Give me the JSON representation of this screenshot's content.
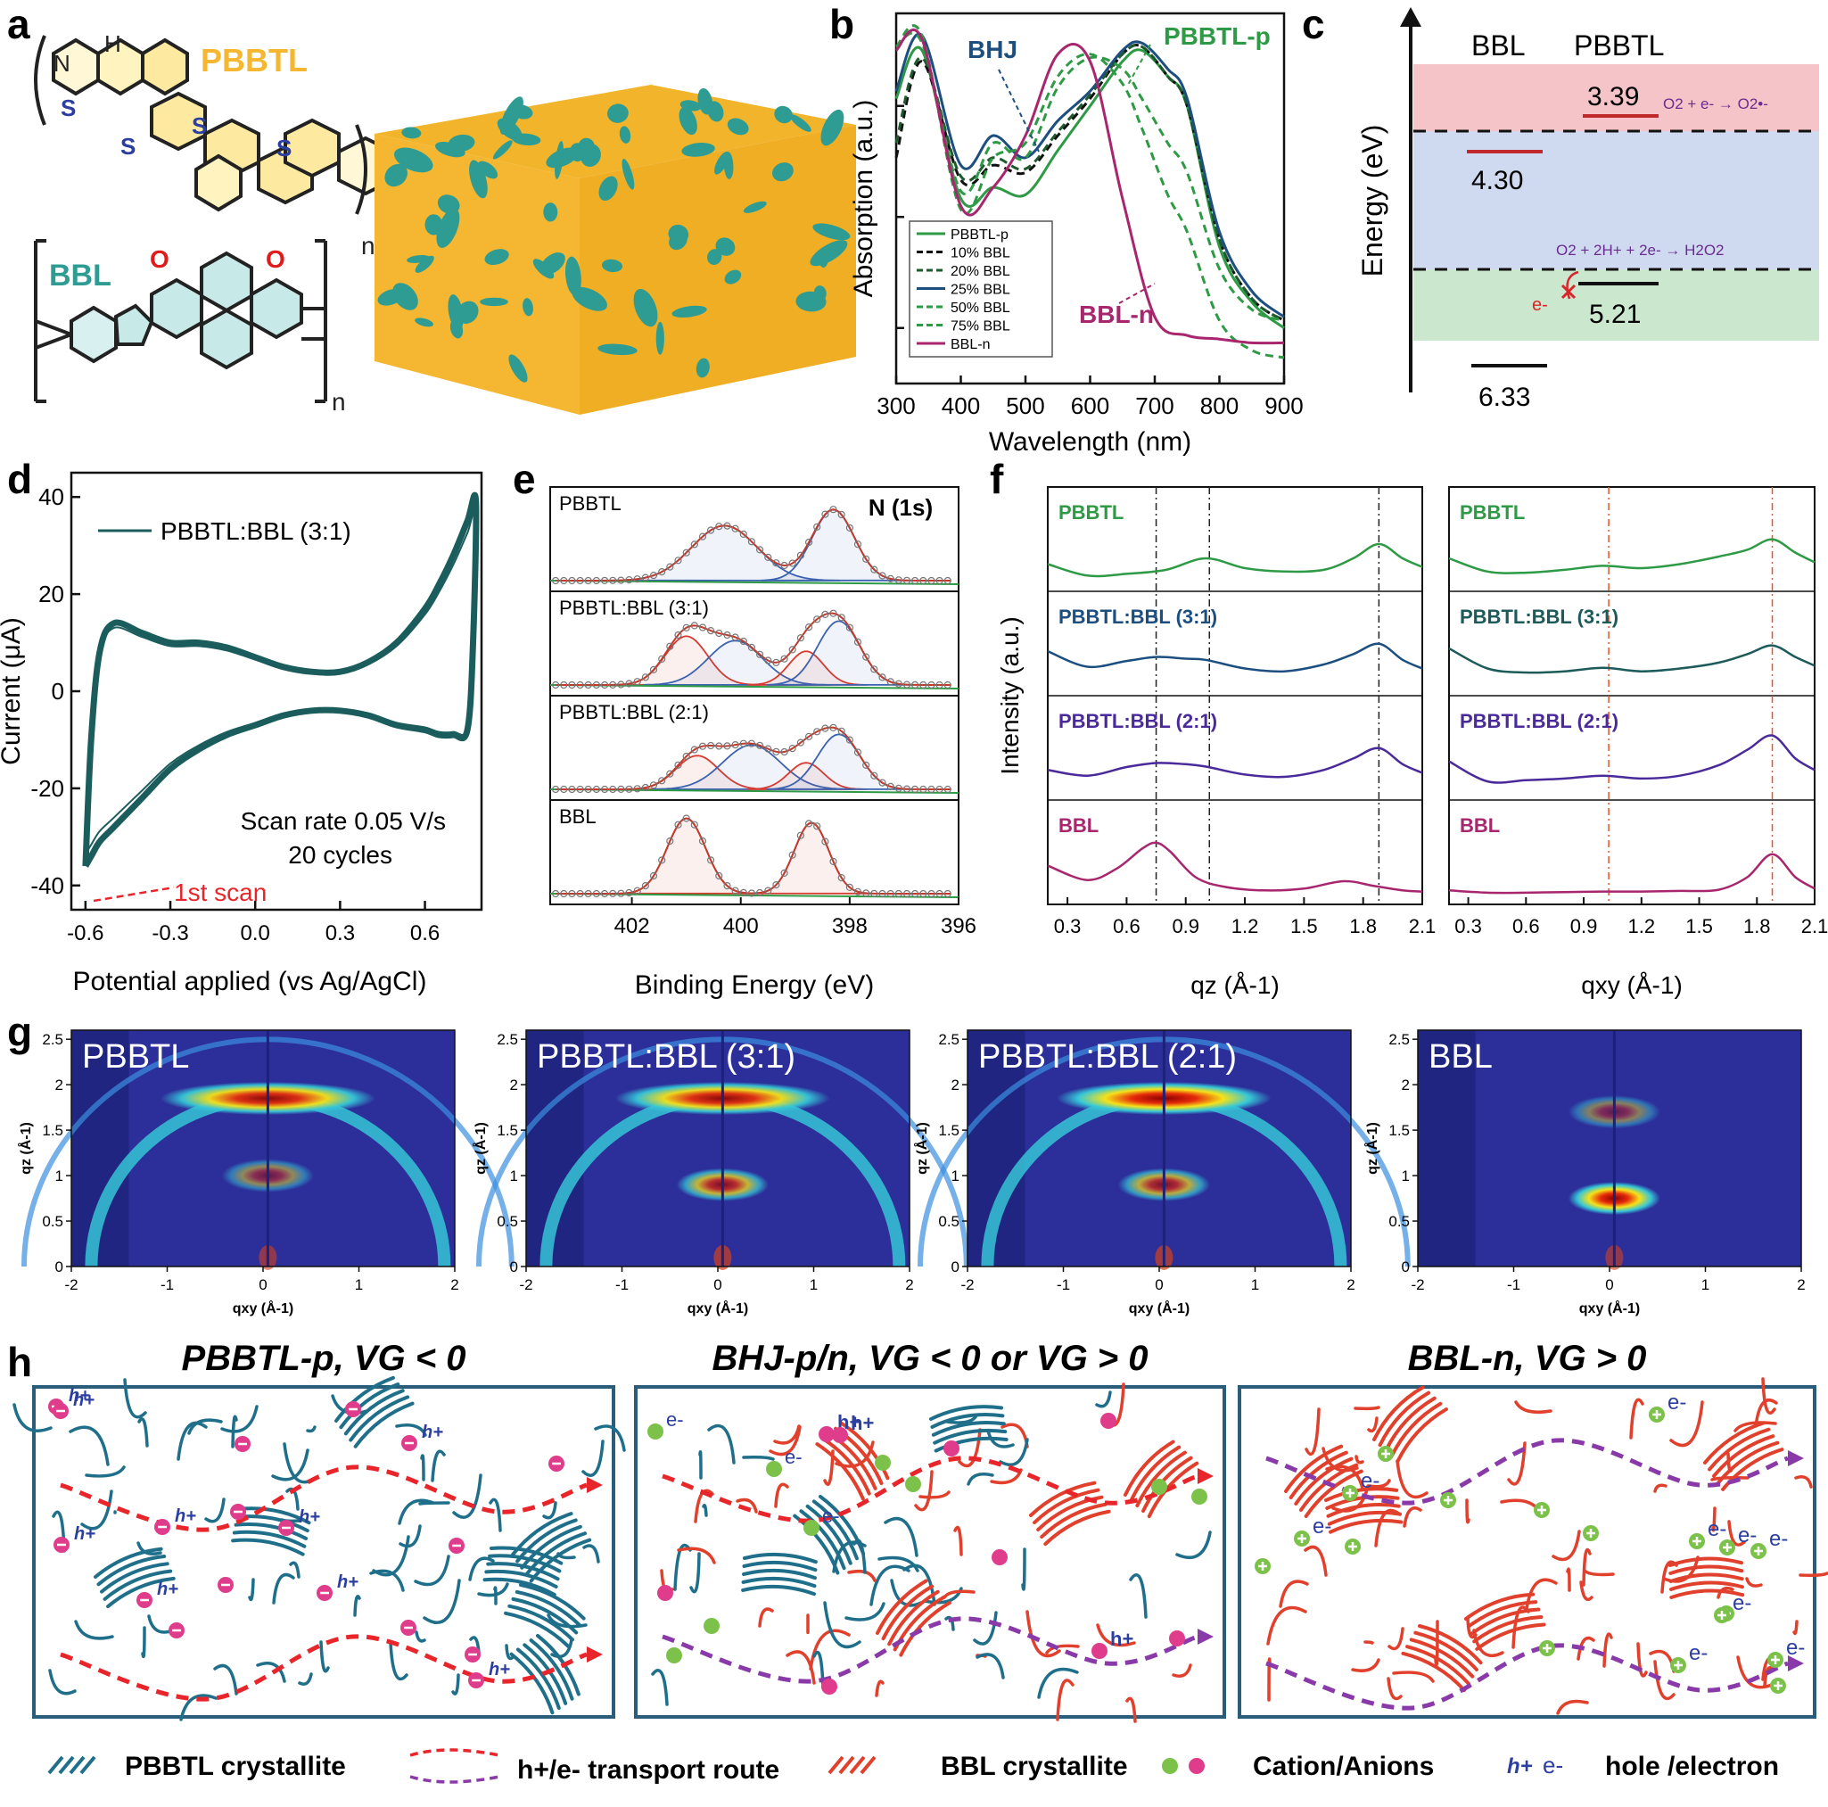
{
  "panel_labels": {
    "a": "a",
    "b": "b",
    "c": "c",
    "d": "d",
    "e": "e",
    "f": "f",
    "g": "g",
    "h": "h"
  },
  "panel_a": {
    "polymer1_name": "PBBTL",
    "polymer2_name": "BBL",
    "atoms": {
      "N": "N",
      "H": "H",
      "S": "S",
      "O": "O",
      "n": "n"
    },
    "colors": {
      "pbbtl": "#f5b731",
      "bbl": "#2f9c94",
      "S": "#2c3fa0",
      "O": "#e01b1b"
    }
  },
  "chart_data": [
    {
      "id": "b",
      "type": "line",
      "xlabel": "Wavelength (nm)",
      "ylabel": "Absorption (a.u.)",
      "xlim": [
        300,
        900
      ],
      "xticks": [
        "300",
        "400",
        "500",
        "600",
        "700",
        "800",
        "900"
      ],
      "annotations": [
        "PBBTL-p",
        "BHJ",
        "BBL-n"
      ],
      "legend_position": "bottom-left",
      "series": [
        {
          "name": "PBBTL-p",
          "color": "#2e9a45",
          "dash": "solid",
          "x": [
            300,
            340,
            400,
            450,
            500,
            550,
            600,
            650,
            680,
            720,
            750,
            800,
            850,
            900
          ],
          "y": [
            0.82,
            0.95,
            0.55,
            0.58,
            0.56,
            0.68,
            0.8,
            0.92,
            0.95,
            0.88,
            0.8,
            0.42,
            0.27,
            0.2
          ]
        },
        {
          "name": "10% BBL",
          "color": "#111111",
          "dash": "dash",
          "x": [
            300,
            340,
            400,
            450,
            500,
            550,
            600,
            650,
            680,
            720,
            750,
            800,
            850,
            900
          ],
          "y": [
            0.66,
            0.92,
            0.6,
            0.64,
            0.62,
            0.72,
            0.82,
            0.94,
            0.96,
            0.88,
            0.8,
            0.44,
            0.28,
            0.22
          ]
        },
        {
          "name": "20% BBL",
          "color": "#1e5a2e",
          "dash": "dash",
          "x": [
            300,
            340,
            400,
            450,
            500,
            550,
            600,
            650,
            680,
            720,
            750,
            800,
            850,
            900
          ],
          "y": [
            0.7,
            0.93,
            0.61,
            0.66,
            0.63,
            0.73,
            0.83,
            0.94,
            0.96,
            0.88,
            0.8,
            0.44,
            0.28,
            0.22
          ]
        },
        {
          "name": "25% BBL",
          "color": "#1c4f80",
          "dash": "solid",
          "x": [
            300,
            340,
            400,
            450,
            500,
            550,
            600,
            650,
            680,
            720,
            750,
            800,
            850,
            900
          ],
          "y": [
            0.84,
            0.99,
            0.64,
            0.72,
            0.66,
            0.76,
            0.84,
            0.95,
            0.97,
            0.9,
            0.82,
            0.46,
            0.3,
            0.23
          ]
        },
        {
          "name": "50% BBL",
          "color": "#2e9a45",
          "dash": "dash",
          "x": [
            300,
            340,
            400,
            450,
            500,
            550,
            600,
            650,
            680,
            720,
            750,
            800,
            850,
            900
          ],
          "y": [
            0.96,
            0.97,
            0.57,
            0.7,
            0.66,
            0.85,
            0.93,
            0.9,
            0.82,
            0.7,
            0.62,
            0.36,
            0.25,
            0.22
          ]
        },
        {
          "name": "75% BBL",
          "color": "#2e9a45",
          "dash": "dash",
          "x": [
            300,
            340,
            400,
            450,
            500,
            550,
            600,
            650,
            680,
            720,
            750,
            800,
            850,
            900
          ],
          "y": [
            0.96,
            0.99,
            0.52,
            0.66,
            0.7,
            0.88,
            0.94,
            0.86,
            0.74,
            0.56,
            0.46,
            0.22,
            0.14,
            0.12
          ]
        },
        {
          "name": "BBL-n",
          "color": "#a8266e",
          "dash": "solid",
          "x": [
            300,
            340,
            400,
            450,
            500,
            550,
            600,
            650,
            700,
            750,
            800,
            850,
            900
          ],
          "y": [
            0.95,
            0.98,
            0.53,
            0.58,
            0.72,
            0.94,
            0.92,
            0.55,
            0.23,
            0.18,
            0.17,
            0.16,
            0.16
          ]
        }
      ]
    },
    {
      "id": "c",
      "type": "energy-diagram",
      "ylabel": "Energy (eV)",
      "column_labels": [
        "BBL",
        "PBBTL"
      ],
      "levels": [
        {
          "label": "3.39",
          "material": "PBBTL",
          "kind": "LUMO",
          "color": "#c0282c"
        },
        {
          "label": "4.30",
          "material": "BBL",
          "kind": "LUMO",
          "color": "#c0282c"
        },
        {
          "label": "5.21",
          "material": "PBBTL",
          "kind": "HOMO",
          "color": "#111111"
        },
        {
          "label": "6.33",
          "material": "BBL",
          "kind": "HOMO",
          "color": "#111111"
        }
      ],
      "reactions": [
        "O2 + e- → O2•-",
        "O2 + 2H+ + 2e- → H2O2"
      ],
      "electron_label": "e-"
    },
    {
      "id": "d",
      "type": "line",
      "xlabel": "Potential applied (vs Ag/AgCl)",
      "ylabel": "Current (μA)",
      "xlim": [
        -0.65,
        0.8
      ],
      "ylim": [
        -45,
        45
      ],
      "xticks": [
        "-0.6",
        "-0.3",
        "0.0",
        "0.3",
        "0.6"
      ],
      "yticks": [
        "-40",
        "-20",
        "0",
        "20",
        "40"
      ],
      "legend": "PBBTL:BBL (3:1)",
      "notes": [
        "Scan rate 0.05 V/s",
        "20 cycles"
      ],
      "first_scan_label": "1st scan",
      "series": [
        {
          "name": "PBBTL:BBL (3:1)",
          "color": "#1b5d5c",
          "x": [
            -0.6,
            -0.58,
            -0.55,
            -0.5,
            -0.4,
            -0.3,
            -0.2,
            -0.1,
            0.0,
            0.1,
            0.2,
            0.3,
            0.4,
            0.5,
            0.6,
            0.65,
            0.7,
            0.75,
            0.78,
            0.77,
            0.75,
            0.7,
            0.65,
            0.6,
            0.5,
            0.4,
            0.3,
            0.2,
            0.1,
            0.0,
            -0.1,
            -0.2,
            -0.3,
            -0.4,
            -0.5,
            -0.55,
            -0.58,
            -0.6
          ],
          "y": [
            -36,
            -10,
            8,
            14,
            12,
            10,
            10,
            9,
            7,
            5,
            4,
            4,
            6,
            10,
            17,
            22,
            28,
            35,
            39,
            10,
            -8,
            -9,
            -9,
            -8,
            -7,
            -5,
            -4,
            -4,
            -5,
            -7,
            -9,
            -12,
            -16,
            -22,
            -28,
            -31,
            -34,
            -36
          ]
        }
      ]
    },
    {
      "id": "e",
      "type": "line",
      "xlabel": "Binding Energy (eV)",
      "xlim": [
        403.5,
        396
      ],
      "xticks": [
        "402",
        "400",
        "398",
        "396"
      ],
      "annotation": "N (1s)",
      "subpanels": [
        {
          "label": "PBBTL",
          "peaks": [
            {
              "center": 400.3,
              "height": 0.62,
              "width": 0.85,
              "color": "#3a62b0"
            },
            {
              "center": 398.3,
              "height": 0.8,
              "width": 0.55,
              "color": "#3a62b0"
            }
          ]
        },
        {
          "label": "PBBTL:BBL (3:1)",
          "peaks": [
            {
              "center": 401.0,
              "height": 0.55,
              "width": 0.55,
              "color": "#d83a2f"
            },
            {
              "center": 400.1,
              "height": 0.5,
              "width": 0.7,
              "color": "#3a62b0"
            },
            {
              "center": 398.8,
              "height": 0.38,
              "width": 0.45,
              "color": "#d83a2f"
            },
            {
              "center": 398.2,
              "height": 0.72,
              "width": 0.55,
              "color": "#3a62b0"
            }
          ]
        },
        {
          "label": "PBBTL:BBL (2:1)",
          "peaks": [
            {
              "center": 400.8,
              "height": 0.38,
              "width": 0.55,
              "color": "#d83a2f"
            },
            {
              "center": 399.8,
              "height": 0.5,
              "width": 0.75,
              "color": "#3a62b0"
            },
            {
              "center": 398.8,
              "height": 0.3,
              "width": 0.45,
              "color": "#d83a2f"
            },
            {
              "center": 398.2,
              "height": 0.62,
              "width": 0.55,
              "color": "#3a62b0"
            }
          ]
        },
        {
          "label": "BBL",
          "peaks": [
            {
              "center": 401.0,
              "height": 0.85,
              "width": 0.5,
              "color": "#d83a2f"
            },
            {
              "center": 398.7,
              "height": 0.8,
              "width": 0.45,
              "color": "#d83a2f"
            }
          ]
        }
      ]
    },
    {
      "id": "f",
      "type": "line",
      "ylabel": "Intensity (a.u.)",
      "xticks": [
        "0.3",
        "0.6",
        "0.9",
        "1.2",
        "1.5",
        "1.8",
        "2.1"
      ],
      "xlim": [
        0.2,
        2.1
      ],
      "left": {
        "xlabel": "qz (Å-1)",
        "reference_lines": [
          0.75,
          1.02,
          1.88
        ],
        "rows": [
          {
            "label": "PBBTL",
            "color": "#2e9a45",
            "x": [
              0.2,
              0.4,
              0.6,
              0.8,
              1.0,
              1.2,
              1.4,
              1.6,
              1.75,
              1.88,
              2.0,
              2.1
            ],
            "y": [
              0.35,
              0.15,
              0.18,
              0.25,
              0.45,
              0.28,
              0.22,
              0.25,
              0.45,
              0.7,
              0.45,
              0.3
            ]
          },
          {
            "label": "PBBTL:BBL (3:1)",
            "color": "#1c4f80",
            "x": [
              0.2,
              0.4,
              0.6,
              0.75,
              0.9,
              1.0,
              1.2,
              1.4,
              1.6,
              1.75,
              1.88,
              2.0,
              2.1
            ],
            "y": [
              0.65,
              0.38,
              0.48,
              0.55,
              0.52,
              0.5,
              0.35,
              0.3,
              0.42,
              0.6,
              0.78,
              0.5,
              0.35
            ]
          },
          {
            "label": "PBBTL:BBL (2:1)",
            "color": "#4a2a9a",
            "x": [
              0.2,
              0.4,
              0.6,
              0.75,
              0.9,
              1.0,
              1.2,
              1.4,
              1.6,
              1.75,
              1.88,
              2.0,
              2.1
            ],
            "y": [
              0.4,
              0.3,
              0.45,
              0.52,
              0.5,
              0.46,
              0.32,
              0.28,
              0.4,
              0.6,
              0.78,
              0.5,
              0.35
            ]
          },
          {
            "label": "BBL",
            "color": "#a8266e",
            "x": [
              0.2,
              0.4,
              0.55,
              0.68,
              0.75,
              0.82,
              0.95,
              1.1,
              1.3,
              1.5,
              1.7,
              1.85,
              2.0,
              2.1
            ],
            "y": [
              0.55,
              0.3,
              0.5,
              0.85,
              0.95,
              0.8,
              0.35,
              0.18,
              0.12,
              0.15,
              0.28,
              0.2,
              0.12,
              0.1
            ]
          }
        ]
      },
      "right": {
        "xlabel": "qxy (Å-1)",
        "reference_lines": [
          1.03,
          1.88
        ],
        "rows": [
          {
            "label": "PBBTL",
            "color": "#2e9a45",
            "x": [
              0.2,
              0.4,
              0.6,
              0.8,
              1.0,
              1.2,
              1.4,
              1.6,
              1.75,
              1.88,
              2.0,
              2.1
            ],
            "y": [
              0.45,
              0.22,
              0.2,
              0.25,
              0.32,
              0.28,
              0.35,
              0.48,
              0.6,
              0.78,
              0.55,
              0.38
            ]
          },
          {
            "label": "PBBTL:BBL (3:1)",
            "color": "#1d5a5a",
            "x": [
              0.2,
              0.4,
              0.6,
              0.8,
              1.0,
              1.2,
              1.4,
              1.6,
              1.75,
              1.88,
              2.0,
              2.1
            ],
            "y": [
              0.7,
              0.35,
              0.28,
              0.3,
              0.36,
              0.3,
              0.35,
              0.45,
              0.6,
              0.75,
              0.55,
              0.4
            ]
          },
          {
            "label": "PBBTL:BBL (2:1)",
            "color": "#4a2a9a",
            "x": [
              0.2,
              0.4,
              0.6,
              0.8,
              1.0,
              1.2,
              1.4,
              1.6,
              1.75,
              1.88,
              2.0,
              2.1
            ],
            "y": [
              0.55,
              0.2,
              0.22,
              0.25,
              0.3,
              0.25,
              0.3,
              0.48,
              0.75,
              1.0,
              0.6,
              0.4
            ]
          },
          {
            "label": "BBL",
            "color": "#a8266e",
            "x": [
              0.2,
              0.4,
              0.6,
              0.8,
              1.0,
              1.2,
              1.4,
              1.6,
              1.75,
              1.88,
              2.0,
              2.1
            ],
            "y": [
              0.12,
              0.08,
              0.08,
              0.09,
              0.1,
              0.1,
              0.11,
              0.13,
              0.35,
              0.75,
              0.35,
              0.15
            ]
          }
        ]
      }
    },
    {
      "id": "g",
      "type": "heatmap",
      "xlabel": "qxy (Å-1)",
      "ylabel": "qz (Å-1)",
      "xticks": [
        "-2",
        "-1",
        "0",
        "1",
        "2"
      ],
      "yticks": [
        "0",
        "0.5",
        "1",
        "1.5",
        "2",
        "2.5"
      ],
      "maps": [
        {
          "label": "PBBTL",
          "features": [
            {
              "q": 1.85,
              "kind": "arc",
              "intensity": 0.95
            },
            {
              "q": 1.0,
              "kind": "blob",
              "intensity": 0.5
            },
            {
              "q": 0.0,
              "kind": "origin",
              "intensity": 0.6
            }
          ]
        },
        {
          "label": "PBBTL:BBL (3:1)",
          "features": [
            {
              "q": 1.85,
              "kind": "arc",
              "intensity": 0.95
            },
            {
              "q": 0.9,
              "kind": "blob",
              "intensity": 0.75
            },
            {
              "q": 0.0,
              "kind": "origin",
              "intensity": 0.7
            }
          ]
        },
        {
          "label": "PBBTL:BBL (2:1)",
          "features": [
            {
              "q": 1.85,
              "kind": "arc",
              "intensity": 1.0
            },
            {
              "q": 0.9,
              "kind": "blob",
              "intensity": 0.7
            },
            {
              "q": 0.0,
              "kind": "origin",
              "intensity": 0.7
            }
          ]
        },
        {
          "label": "BBL",
          "features": [
            {
              "q": 1.7,
              "kind": "blob",
              "intensity": 0.45
            },
            {
              "q": 0.75,
              "kind": "blob",
              "intensity": 1.0
            },
            {
              "q": 0.0,
              "kind": "origin",
              "intensity": 0.6
            }
          ]
        }
      ]
    }
  ],
  "panel_h": {
    "titles": [
      "PBBTL-p, VG < 0",
      "BHJ-p/n, VG < 0 or VG > 0",
      "BBL-n, VG > 0"
    ],
    "carrier_labels": {
      "hole": "h+",
      "electron": "e-"
    },
    "legend": {
      "pbbtl_crystallite": "PBBTL crystallite",
      "transport_route": "h+/e- transport route",
      "bbl_crystallite": "BBL crystallite",
      "ions": "Cation/Anions",
      "carriers": "hole /electron"
    },
    "colors": {
      "pbbtl": "#1f6f8b",
      "bbl": "#e0402c",
      "hole_route": "#e8252a",
      "electron_route": "#8a3aa8",
      "cation": "#7cc24a",
      "anion": "#e03c8c"
    }
  }
}
